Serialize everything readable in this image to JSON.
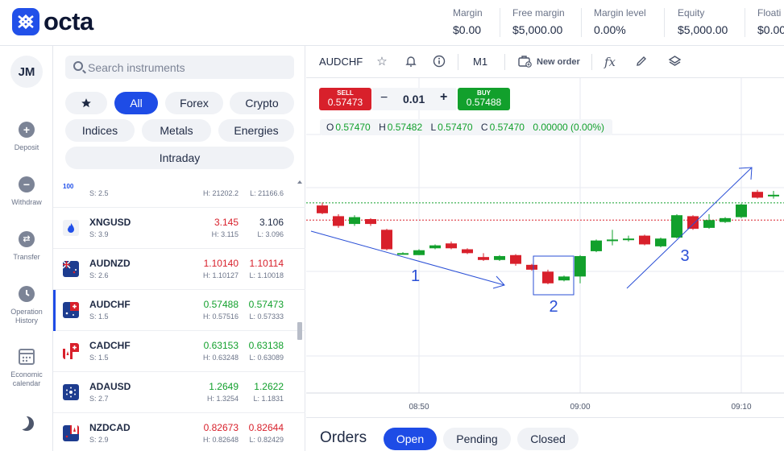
{
  "header": {
    "logo_text": "octa",
    "metrics": [
      {
        "label": "Margin",
        "value": "$0.00"
      },
      {
        "label": "Free margin",
        "value": "$5,000.00"
      },
      {
        "label": "Margin level",
        "value": "0.00%"
      },
      {
        "label": "Equity",
        "value": "$5,000.00"
      },
      {
        "label": "Floati",
        "value": "$0.00"
      }
    ]
  },
  "rail": {
    "avatar": "JM",
    "items": [
      {
        "label": "Deposit",
        "icon": "plus-icon"
      },
      {
        "label": "Withdraw",
        "icon": "minus-icon"
      },
      {
        "label": "Transfer",
        "icon": "transfer-icon"
      },
      {
        "label": "Operation History",
        "icon": "clock-icon"
      },
      {
        "label": "Economic calendar",
        "icon": "calendar-icon"
      }
    ]
  },
  "search": {
    "placeholder": "Search instruments"
  },
  "filters": {
    "favorites_icon": "star-icon",
    "all": "All",
    "forex": "Forex",
    "crypto": "Crypto",
    "indices": "Indices",
    "metals": "Metals",
    "energies": "Energies",
    "intraday": "Intraday"
  },
  "instruments": [
    {
      "symbol": "",
      "spread": "S: 2.5",
      "bid": "",
      "ask": "",
      "high": "H: 21202.2",
      "low": "L: 21166.6",
      "flag": "index",
      "flag_text": "100",
      "bid_dir": "neutral",
      "ask_dir": "neutral"
    },
    {
      "symbol": "XNGUSD",
      "spread": "S: 3.9",
      "bid": "3.145",
      "ask": "3.106",
      "high": "H: 3.115",
      "low": "L: 3.096",
      "flag": "gas",
      "flag_text": "",
      "bid_dir": "down",
      "ask_dir": "neutral"
    },
    {
      "symbol": "AUDNZD",
      "spread": "S: 2.6",
      "bid": "1.10140",
      "ask": "1.10114",
      "high": "H: 1.10127",
      "low": "L: 1.10018",
      "flag": "aud-nzd",
      "flag_text": "",
      "bid_dir": "down",
      "ask_dir": "down"
    },
    {
      "symbol": "AUDCHF",
      "spread": "S: 1.5",
      "bid": "0.57488",
      "ask": "0.57473",
      "high": "H: 0.57516",
      "low": "L: 0.57333",
      "flag": "aud-chf",
      "flag_text": "",
      "bid_dir": "up",
      "ask_dir": "up"
    },
    {
      "symbol": "CADCHF",
      "spread": "S: 1.5",
      "bid": "0.63153",
      "ask": "0.63138",
      "high": "H: 0.63248",
      "low": "L: 0.63089",
      "flag": "cad-chf",
      "flag_text": "",
      "bid_dir": "up",
      "ask_dir": "up"
    },
    {
      "symbol": "ADAUSD",
      "spread": "S: 2.7",
      "bid": "1.2649",
      "ask": "1.2622",
      "high": "H: 1.3254",
      "low": "L: 1.1831",
      "flag": "ada",
      "flag_text": "",
      "bid_dir": "up",
      "ask_dir": "up"
    },
    {
      "symbol": "NZDCAD",
      "spread": "S: 2.9",
      "bid": "0.82673",
      "ask": "0.82644",
      "high": "H: 0.82648",
      "low": "L: 0.82429",
      "flag": "nzd-cad",
      "flag_text": "",
      "bid_dir": "down",
      "ask_dir": "down"
    }
  ],
  "chart": {
    "symbol": "AUDCHF",
    "timeframe": "M1",
    "new_order": "New order",
    "fx_label": "fx",
    "sell_label": "SELL",
    "sell_price": "0.57473",
    "buy_label": "BUY",
    "buy_price": "0.57488",
    "quantity": "0.01",
    "minus": "−",
    "plus": "+",
    "ohlc": {
      "o_label": "O",
      "o": "0.57470",
      "h_label": "H",
      "h": "0.57482",
      "l_label": "L",
      "l": "0.57470",
      "c_label": "C",
      "c": "0.57470",
      "change": "0.00000 (0.00%)"
    },
    "time_labels": [
      "08:50",
      "09:00",
      "09:10"
    ],
    "annotations": [
      "1",
      "2",
      "3"
    ],
    "candles": [
      {
        "o": 0.57455,
        "c": 0.57447,
        "h": 0.57458,
        "l": 0.57446
      },
      {
        "o": 0.57444,
        "c": 0.57434,
        "h": 0.57446,
        "l": 0.57432
      },
      {
        "o": 0.57436,
        "c": 0.57443,
        "h": 0.57445,
        "l": 0.57434
      },
      {
        "o": 0.57441,
        "c": 0.57436,
        "h": 0.57442,
        "l": 0.57434
      },
      {
        "o": 0.5743,
        "c": 0.5741,
        "h": 0.57431,
        "l": 0.57409
      },
      {
        "o": 0.57406,
        "c": 0.57406,
        "h": 0.57407,
        "l": 0.57405
      },
      {
        "o": 0.57404,
        "c": 0.57409,
        "h": 0.5741,
        "l": 0.57404
      },
      {
        "o": 0.57411,
        "c": 0.57414,
        "h": 0.57415,
        "l": 0.5741
      },
      {
        "o": 0.57416,
        "c": 0.57411,
        "h": 0.57418,
        "l": 0.5741
      },
      {
        "o": 0.5741,
        "c": 0.57406,
        "h": 0.57411,
        "l": 0.57405
      },
      {
        "o": 0.57402,
        "c": 0.57399,
        "h": 0.57406,
        "l": 0.57398
      },
      {
        "o": 0.57399,
        "c": 0.57403,
        "h": 0.57404,
        "l": 0.57398
      },
      {
        "o": 0.57404,
        "c": 0.57395,
        "h": 0.57405,
        "l": 0.57393
      },
      {
        "o": 0.57394,
        "c": 0.57389,
        "h": 0.57395,
        "l": 0.57388
      },
      {
        "o": 0.57387,
        "c": 0.57375,
        "h": 0.57389,
        "l": 0.57374
      },
      {
        "o": 0.57378,
        "c": 0.57382,
        "h": 0.57383,
        "l": 0.57377
      },
      {
        "o": 0.57382,
        "c": 0.57403,
        "h": 0.57404,
        "l": 0.57375
      },
      {
        "o": 0.57408,
        "c": 0.57419,
        "h": 0.5742,
        "l": 0.57407
      },
      {
        "o": 0.5742,
        "c": 0.5742,
        "h": 0.5743,
        "l": 0.57414
      },
      {
        "o": 0.5742,
        "c": 0.57421,
        "h": 0.57424,
        "l": 0.57418
      },
      {
        "o": 0.57424,
        "c": 0.57415,
        "h": 0.57425,
        "l": 0.57414
      },
      {
        "o": 0.57413,
        "c": 0.57421,
        "h": 0.57422,
        "l": 0.57412
      },
      {
        "o": 0.57422,
        "c": 0.57445,
        "h": 0.57446,
        "l": 0.57421
      },
      {
        "o": 0.57444,
        "c": 0.57431,
        "h": 0.57445,
        "l": 0.5743
      },
      {
        "o": 0.57432,
        "c": 0.5744,
        "h": 0.57446,
        "l": 0.57431
      },
      {
        "o": 0.57438,
        "c": 0.57442,
        "h": 0.57443,
        "l": 0.57437
      },
      {
        "o": 0.57443,
        "c": 0.57456,
        "h": 0.57457,
        "l": 0.57442
      },
      {
        "o": 0.57469,
        "c": 0.57463,
        "h": 0.57471,
        "l": 0.57462
      },
      {
        "o": 0.57466,
        "c": 0.57466,
        "h": 0.5747,
        "l": 0.57462
      },
      {
        "o": 0.57468,
        "c": 0.5747,
        "h": 0.5747,
        "l": 0.57462
      }
    ]
  },
  "orders": {
    "title": "Orders",
    "tabs": [
      "Open",
      "Pending",
      "Closed"
    ]
  },
  "colors": {
    "accent": "#1e4ce6",
    "up": "#12a02c",
    "down": "#d8202b",
    "annotation": "#2a4fd6"
  }
}
